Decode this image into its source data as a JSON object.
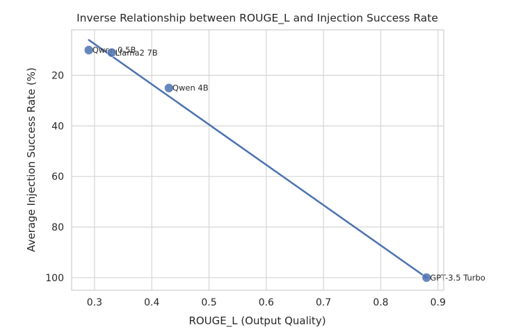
{
  "chart_data": {
    "type": "scatter",
    "title": "Inverse Relationship between ROUGE_L and Injection Success Rate",
    "xlabel": "ROUGE_L (Output Quality)",
    "ylabel": "Average Injection Success Rate (%)",
    "xlim": [
      0.26,
      0.91
    ],
    "ylim": [
      105,
      2
    ],
    "y_inverted": true,
    "grid": true,
    "xticks": [
      0.3,
      0.4,
      0.5,
      0.6,
      0.7,
      0.8,
      0.9
    ],
    "xtick_labels": [
      "0.3",
      "0.4",
      "0.5",
      "0.6",
      "0.7",
      "0.8",
      "0.9"
    ],
    "yticks": [
      20,
      40,
      60,
      80,
      100
    ],
    "ytick_labels": [
      "20",
      "40",
      "60",
      "80",
      "100"
    ],
    "points": [
      {
        "label": "Qwen 0.5B",
        "x": 0.29,
        "y": 10
      },
      {
        "label": "Llama2 7B",
        "x": 0.33,
        "y": 11
      },
      {
        "label": "Qwen 4B",
        "x": 0.43,
        "y": 25
      },
      {
        "label": "GPT-3.5 Turbo",
        "x": 0.88,
        "y": 100
      }
    ],
    "trendline": {
      "x": [
        0.29,
        0.88
      ],
      "y": [
        6,
        100
      ]
    },
    "colors": {
      "point": "#4c72b0",
      "line": "#4c72b0",
      "grid": "#d5d5d5",
      "frame": "#cccccc",
      "text": "#262626"
    }
  }
}
